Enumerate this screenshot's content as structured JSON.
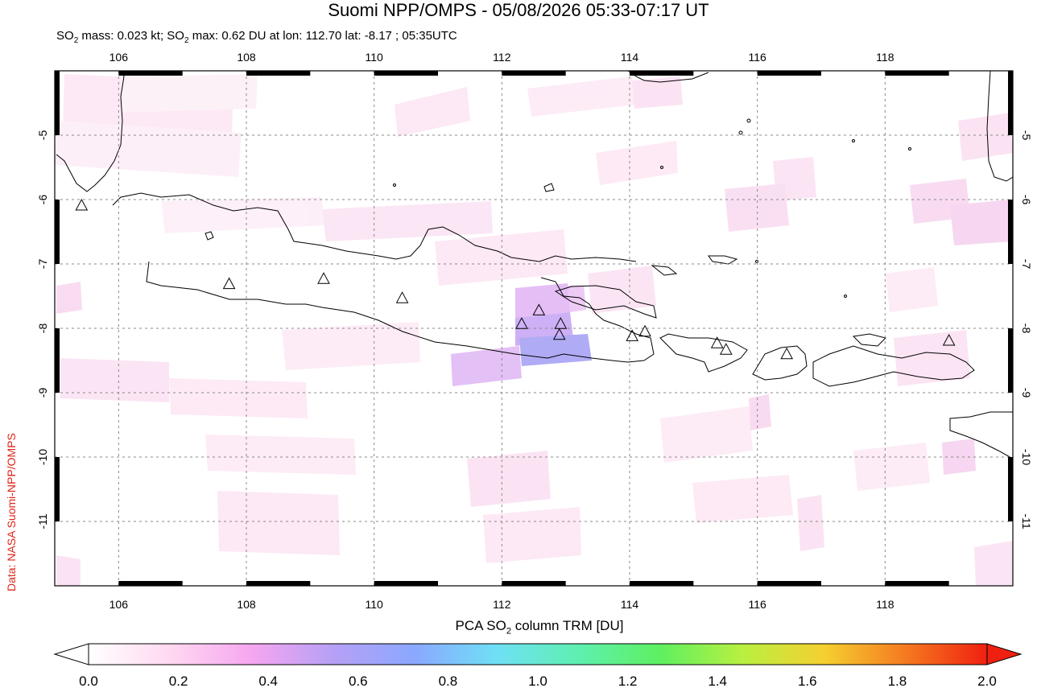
{
  "header": {
    "title": "Suomi NPP/OMPS - 05/08/2026 05:33-07:17 UT",
    "subtitle_pre": "SO",
    "subtitle_sub": "2",
    "subtitle_mid": " mass: 0.023 kt; SO",
    "subtitle_sub2": "2",
    "subtitle_post": " max: 0.62 DU at lon: 112.70 lat: -8.17 ; 05:35UTC"
  },
  "credit": "Data: NASA Suomi-NPP/OMPS",
  "map": {
    "lon_range": [
      105,
      120
    ],
    "lat_range": [
      -12,
      -4
    ],
    "lon_ticks": [
      "106",
      "108",
      "110",
      "112",
      "114",
      "116",
      "118"
    ],
    "lon_tick_values": [
      106,
      108,
      110,
      112,
      114,
      116,
      118
    ],
    "lat_ticks": [
      "-5",
      "-6",
      "-7",
      "-8",
      "-9",
      "-10",
      "-11"
    ],
    "lat_tick_values": [
      -5,
      -6,
      -7,
      -8,
      -9,
      -10,
      -11
    ],
    "volcanoes": [
      [
        105.42,
        -6.1
      ],
      [
        107.73,
        -7.32
      ],
      [
        109.21,
        -7.24
      ],
      [
        110.44,
        -7.54
      ],
      [
        112.31,
        -7.94
      ],
      [
        112.58,
        -7.73
      ],
      [
        112.92,
        -7.94
      ],
      [
        112.9,
        -8.11
      ],
      [
        114.04,
        -8.13
      ],
      [
        114.24,
        -8.06
      ],
      [
        115.37,
        -8.24
      ],
      [
        115.51,
        -8.34
      ],
      [
        116.46,
        -8.41
      ],
      [
        119.0,
        -8.2
      ]
    ]
  },
  "colorbar": {
    "title_pre": "PCA SO",
    "title_sub": "2",
    "title_post": " column TRM [DU]",
    "tick_labels": [
      "0.0",
      "0.2",
      "0.4",
      "0.6",
      "0.8",
      "1.0",
      "1.2",
      "1.4",
      "1.6",
      "1.8",
      "2.0"
    ],
    "colors": [
      "#ffffff",
      "#ffd8f0",
      "#f5a6f0",
      "#b6a0f5",
      "#8aa8ff",
      "#6fe0f5",
      "#5ef0b0",
      "#5ef060",
      "#b8f040",
      "#f5d030",
      "#f57a20",
      "#f02010"
    ]
  }
}
